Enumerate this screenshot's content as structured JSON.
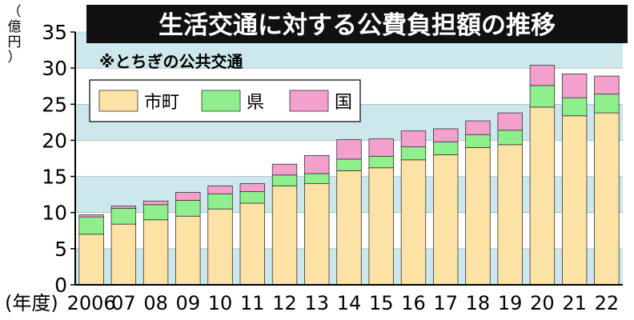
{
  "chart_data": {
    "type": "bar",
    "stacked": true,
    "title": "生活交通に対する公費負担額の推移",
    "subtitle": "※とちぎの公共交通",
    "ylabel": "億円",
    "xlabel": "年度",
    "ylim": [
      0,
      35
    ],
    "yticks": [
      0,
      5,
      10,
      15,
      20,
      25,
      30,
      35
    ],
    "ytick_labels": [
      "0",
      "5",
      "10",
      "15",
      "20",
      "25",
      "30",
      "35"
    ],
    "categories": [
      "2006",
      "07",
      "08",
      "09",
      "10",
      "11",
      "12",
      "13",
      "14",
      "15",
      "16",
      "17",
      "18",
      "19",
      "20",
      "21",
      "22"
    ],
    "series": [
      {
        "name": "市町",
        "color": "#fde2a6",
        "values": [
          7.0,
          8.4,
          9.0,
          9.5,
          10.5,
          11.3,
          13.7,
          14.0,
          15.8,
          16.2,
          17.3,
          18.0,
          19.0,
          19.4,
          24.6,
          23.4,
          23.8
        ]
      },
      {
        "name": "県",
        "color": "#8eef8c",
        "values": [
          2.4,
          2.2,
          2.1,
          2.2,
          2.1,
          1.6,
          1.5,
          1.4,
          1.6,
          1.6,
          1.8,
          1.8,
          1.8,
          2.0,
          3.0,
          2.5,
          2.6
        ]
      },
      {
        "name": "国",
        "color": "#f4a0cd",
        "values": [
          0.3,
          0.3,
          0.5,
          1.1,
          1.1,
          1.1,
          1.5,
          2.5,
          2.7,
          2.4,
          2.2,
          1.8,
          1.9,
          2.4,
          2.8,
          3.3,
          2.5
        ]
      }
    ],
    "grid": true,
    "legend": "top-left",
    "colors": {
      "background": "#cde8ec",
      "title_bar": "#111111"
    }
  }
}
